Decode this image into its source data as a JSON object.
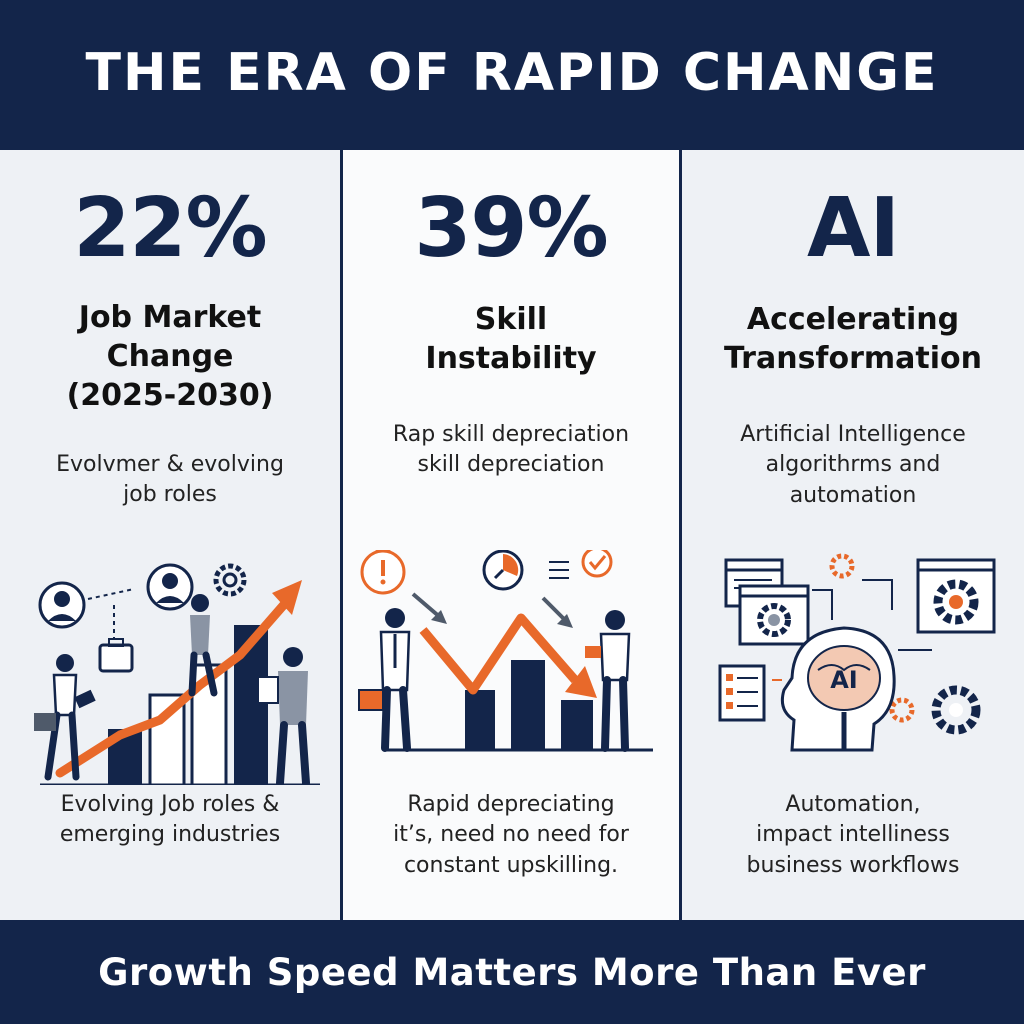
{
  "header": {
    "title": "THE ERA OF RAPID CHANGE"
  },
  "columns": [
    {
      "stat": "22%",
      "subtitle_lines": [
        "Job Market",
        "Change",
        "(2025-2030)"
      ],
      "desc_lines": [
        "Evolvmer & evolving",
        "job roles"
      ],
      "bottom_lines": [
        "Evolving Job roles &",
        "emerging industries"
      ]
    },
    {
      "stat": "39%",
      "subtitle_lines": [
        "Skill",
        "Instability"
      ],
      "desc_lines": [
        "Rap skill depreciation",
        "skill depreciation"
      ],
      "bottom_lines": [
        "Rapid depreciating",
        "it’s, need no need for",
        "constant upskilling."
      ]
    },
    {
      "stat": "AI",
      "subtitle_lines": [
        "Accelerating",
        "Transformation"
      ],
      "desc_lines": [
        "Artificial Intelligence",
        "algorithrms and",
        "automation"
      ],
      "bottom_lines": [
        "Automation,",
        "impact intelliness",
        "business workflows"
      ]
    }
  ],
  "ai_badge": "AI",
  "footer": {
    "text": "Growth Speed Matters More Than Ever"
  },
  "colors": {
    "navy": "#13254a",
    "orange": "#e8692a",
    "light": "#eef1f5"
  },
  "icons": [
    "person-icon",
    "briefcase-icon",
    "gear-icon",
    "upward-arrow-icon",
    "alert-icon",
    "clock-icon",
    "check-icon",
    "downward-arrow-icon",
    "brain-icon",
    "window-icon",
    "checklist-icon"
  ]
}
